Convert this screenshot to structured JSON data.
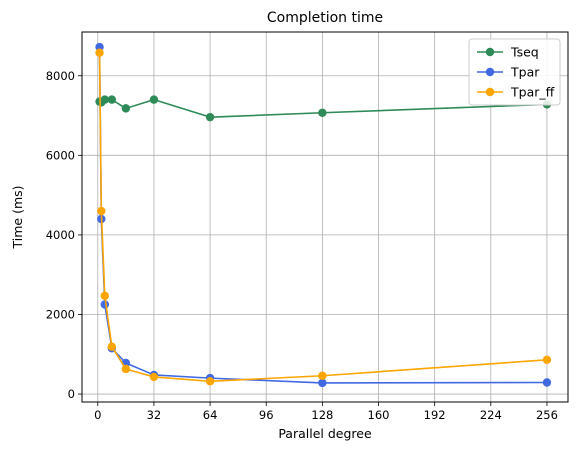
{
  "chart_data": {
    "type": "line",
    "title": "Completion time",
    "xlabel": "Parallel degree",
    "ylabel": "Time (ms)",
    "xlim": [
      -9,
      268
    ],
    "ylim": [
      -200,
      9100
    ],
    "xticks": [
      0,
      32,
      64,
      96,
      128,
      160,
      192,
      224,
      256
    ],
    "yticks": [
      0,
      2000,
      4000,
      6000,
      8000
    ],
    "grid": true,
    "legend_position": "top-right",
    "series": [
      {
        "name": "Tseq",
        "color": "#2e8b57",
        "x": [
          1,
          2,
          4,
          8,
          16,
          32,
          64,
          128,
          256
        ],
        "y": [
          7350,
          7330,
          7400,
          7400,
          7180,
          7400,
          6960,
          7070,
          7280
        ]
      },
      {
        "name": "Tpar",
        "color": "#4169e1",
        "x": [
          1,
          2,
          4,
          8,
          16,
          32,
          64,
          128,
          256
        ],
        "y": [
          8720,
          4400,
          2250,
          1150,
          780,
          480,
          400,
          280,
          290
        ]
      },
      {
        "name": "Tpar_ff",
        "color": "#ffa500",
        "x": [
          1,
          2,
          4,
          8,
          16,
          32,
          64,
          128,
          256
        ],
        "y": [
          8580,
          4600,
          2470,
          1190,
          630,
          430,
          320,
          460,
          860
        ]
      }
    ]
  }
}
